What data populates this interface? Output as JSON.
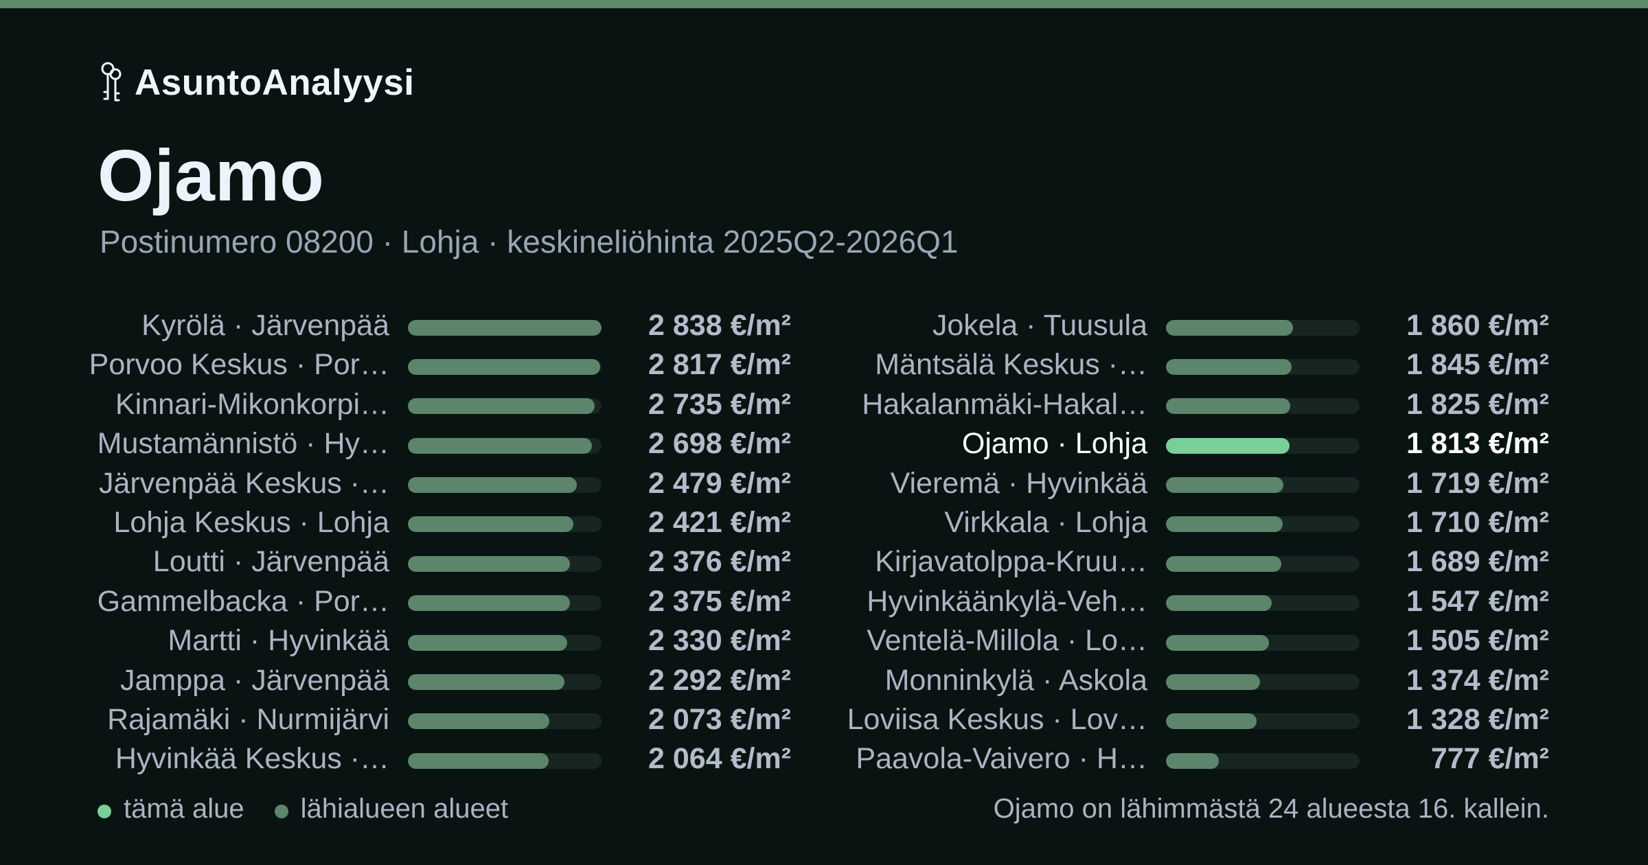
{
  "brand": {
    "name": "AsuntoAnalyysi",
    "icon": "keys-icon"
  },
  "title": "Ojamo",
  "subtitle": "Postinumero 08200 · Lohja · keskineliöhinta 2025Q2-2026Q1",
  "legend": {
    "this_area": "tämä alue",
    "nearby": "lähialueen alueet"
  },
  "footnote": "Ojamo on lähimmästä 24 alueesta 16. kallein.",
  "colors": {
    "background": "#091412",
    "accent_bar": "#5d8a69",
    "highlight": "#79cf98",
    "bar": "#5c856b",
    "track": "#182621"
  },
  "chart_data": {
    "type": "bar",
    "orientation": "horizontal",
    "unit": "€/m²",
    "xlim": [
      0,
      2838
    ],
    "categories": [
      "Kyrölä · Järvenpää",
      "Porvoo Keskus · Por…",
      "Kinnari-Mikonkorpi…",
      "Mustamännistö · Hy…",
      "Järvenpää Keskus ·…",
      "Lohja Keskus · Lohja",
      "Loutti · Järvenpää",
      "Gammelbacka · Por…",
      "Martti · Hyvinkää",
      "Jamppa · Järvenpää",
      "Rajamäki · Nurmijärvi",
      "Hyvinkää Keskus ·…",
      "Jokela · Tuusula",
      "Mäntsälä Keskus ·…",
      "Hakalanmäki-Hakal…",
      "Ojamo · Lohja",
      "Vieremä · Hyvinkää",
      "Virkkala · Lohja",
      "Kirjavatolppa-Kruu…",
      "Hyvinkäänkylä-Veh…",
      "Ventelä-Millola · Lo…",
      "Monninkylä · Askola",
      "Loviisa Keskus · Lov…",
      "Paavola-Vaivero · H…"
    ],
    "values": [
      2838,
      2817,
      2735,
      2698,
      2479,
      2421,
      2376,
      2375,
      2330,
      2292,
      2073,
      2064,
      1860,
      1845,
      1825,
      1813,
      1719,
      1710,
      1689,
      1547,
      1505,
      1374,
      1328,
      777
    ],
    "value_labels": [
      "2 838 €/m²",
      "2 817 €/m²",
      "2 735 €/m²",
      "2 698 €/m²",
      "2 479 €/m²",
      "2 421 €/m²",
      "2 376 €/m²",
      "2 375 €/m²",
      "2 330 €/m²",
      "2 292 €/m²",
      "2 073 €/m²",
      "2 064 €/m²",
      "1 860 €/m²",
      "1 845 €/m²",
      "1 825 €/m²",
      "1 813 €/m²",
      "1 719 €/m²",
      "1 710 €/m²",
      "1 689 €/m²",
      "1 547 €/m²",
      "1 505 €/m²",
      "1 374 €/m²",
      "1 328 €/m²",
      "777 €/m²"
    ],
    "highlight": "Ojamo · Lohja",
    "columns": 2
  }
}
